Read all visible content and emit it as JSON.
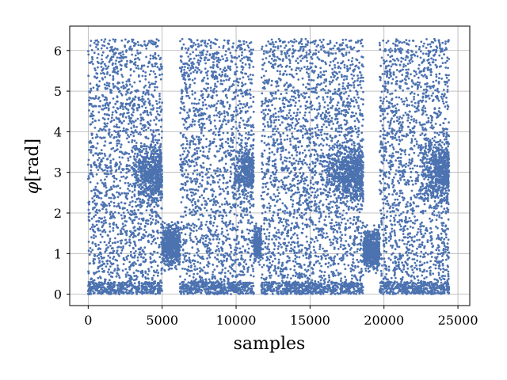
{
  "chart_data": {
    "type": "scatter",
    "xlabel": "samples",
    "ylabel_symbol": "φ",
    "ylabel_unit": "[rad]",
    "xlim": [
      -1250,
      25800
    ],
    "ylim": [
      -0.28,
      6.6
    ],
    "xticks": [
      0,
      5000,
      10000,
      15000,
      20000,
      25000
    ],
    "xtick_labels": [
      "0",
      "5000",
      "10000",
      "15000",
      "20000",
      "25000"
    ],
    "yticks": [
      0,
      1,
      2,
      3,
      4,
      5,
      6
    ],
    "ytick_labels": [
      "0",
      "1",
      "2",
      "3",
      "4",
      "5",
      "6"
    ],
    "grid": true,
    "marker_color": "#4c72b0",
    "marker_size": 1.4,
    "point_count_approx": 12000,
    "segments": [
      {
        "x": [
          0,
          5000
        ],
        "y": [
          0.0,
          6.28
        ],
        "clusters": [
          {
            "x": [
              3000,
              5000
            ],
            "y": [
              2.0,
              3.9
            ]
          }
        ]
      },
      {
        "x": [
          5000,
          6200
        ],
        "y": [
          0.5,
          1.9
        ]
      },
      {
        "x": [
          6200,
          11200
        ],
        "y": [
          0.0,
          6.28
        ],
        "clusters": [
          {
            "x": [
              9800,
              11200
            ],
            "y": [
              2.2,
              3.8
            ]
          }
        ]
      },
      {
        "x": [
          11200,
          11700
        ],
        "y": [
          0.6,
          1.8
        ]
      },
      {
        "x": [
          11700,
          18600
        ],
        "y": [
          0.0,
          6.28
        ],
        "clusters": [
          {
            "x": [
              16000,
              18600
            ],
            "y": [
              2.0,
              3.9
            ]
          }
        ]
      },
      {
        "x": [
          18600,
          19700
        ],
        "y": [
          0.4,
          1.8
        ]
      },
      {
        "x": [
          19700,
          24400
        ],
        "y": [
          0.0,
          6.28
        ],
        "clusters": [
          {
            "x": [
              22500,
              24400
            ],
            "y": [
              2.0,
              4.0
            ]
          }
        ]
      }
    ]
  }
}
